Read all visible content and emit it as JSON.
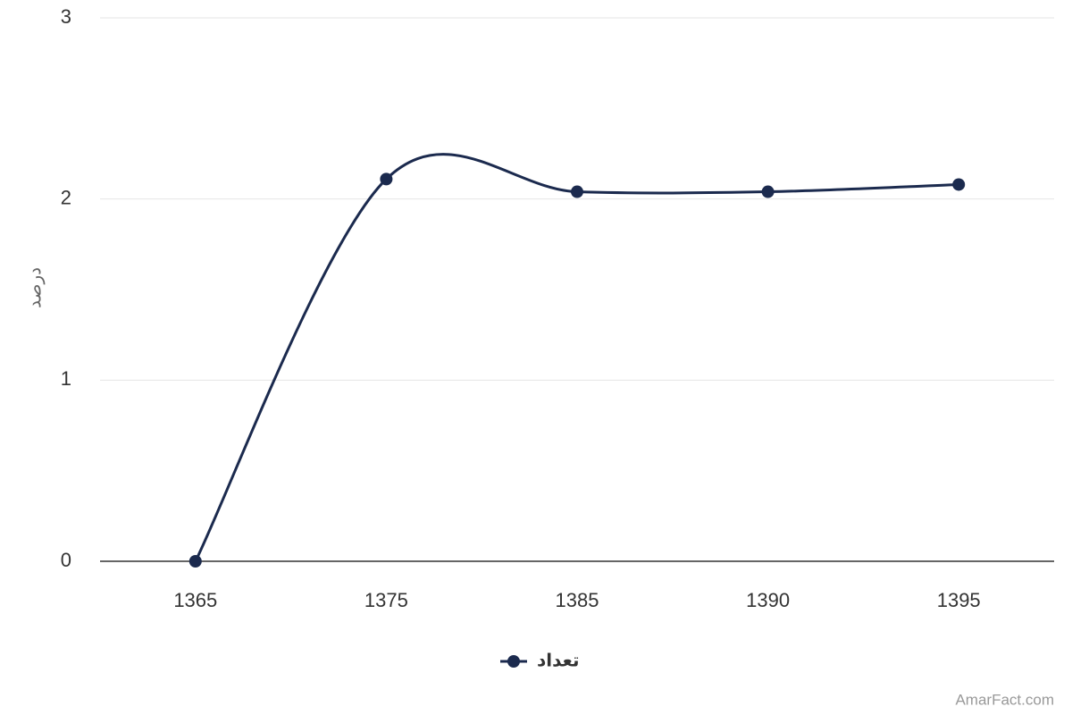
{
  "chart_data": {
    "type": "line",
    "y_label": "درصد",
    "categories": [
      "1365",
      "1375",
      "1385",
      "1390",
      "1395"
    ],
    "series": [
      {
        "name": "تعداد",
        "color": "#1b2a4e",
        "values": [
          0,
          2.11,
          2.04,
          2.04,
          2.08
        ]
      }
    ],
    "ylim": [
      0,
      3
    ],
    "yticks": [
      0,
      1,
      2,
      3
    ],
    "grid": true,
    "smooth": true,
    "legend": "bottom",
    "credit": "AmarFact.com"
  }
}
